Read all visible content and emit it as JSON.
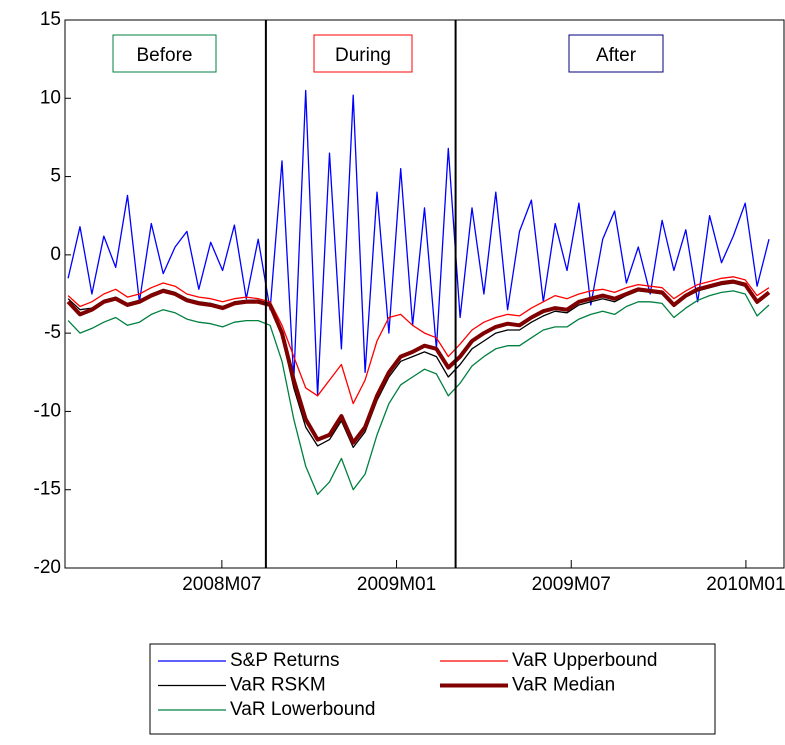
{
  "chart_data": {
    "type": "line",
    "x": [
      2008.06,
      2008.094,
      2008.128,
      2008.162,
      2008.196,
      2008.23,
      2008.264,
      2008.298,
      2008.332,
      2008.366,
      2008.4,
      2008.434,
      2008.468,
      2008.502,
      2008.536,
      2008.57,
      2008.604,
      2008.638,
      2008.672,
      2008.706,
      2008.74,
      2008.774,
      2008.808,
      2008.842,
      2008.876,
      2008.91,
      2008.944,
      2008.978,
      2009.012,
      2009.046,
      2009.08,
      2009.114,
      2009.148,
      2009.182,
      2009.216,
      2009.25,
      2009.284,
      2009.318,
      2009.352,
      2009.386,
      2009.42,
      2009.454,
      2009.488,
      2009.522,
      2009.556,
      2009.59,
      2009.624,
      2009.658,
      2009.692,
      2009.726,
      2009.76,
      2009.794,
      2009.828,
      2009.862,
      2009.896,
      2009.93,
      2009.964,
      2009.998,
      2010.032,
      2010.066
    ],
    "series": [
      {
        "name": "S&P Returns",
        "color": "#0000ff",
        "width": 1.3,
        "values": [
          -1.5,
          1.8,
          -2.5,
          1.2,
          -0.8,
          3.8,
          -3.0,
          2.0,
          -1.2,
          0.5,
          1.5,
          -2.2,
          0.8,
          -1.0,
          1.9,
          -2.8,
          1.0,
          -3.5,
          6.0,
          -8.0,
          10.5,
          -9.0,
          6.5,
          -6.0,
          10.2,
          -7.5,
          4.0,
          -5.0,
          5.5,
          -4.5,
          3.0,
          -6.0,
          6.8,
          -4.0,
          3.0,
          -2.5,
          4.0,
          -3.5,
          1.5,
          3.5,
          -3.0,
          2.0,
          -1.0,
          3.3,
          -3.2,
          1.0,
          2.8,
          -1.8,
          0.5,
          -2.5,
          2.2,
          -1.0,
          1.6,
          -3.0,
          2.5,
          -0.5,
          1.2,
          3.3,
          -2.0,
          1.0
        ]
      },
      {
        "name": "VaR Upperbound",
        "color": "#ff0000",
        "width": 1.3,
        "values": [
          -2.6,
          -3.3,
          -3.0,
          -2.5,
          -2.2,
          -2.7,
          -2.5,
          -2.1,
          -1.8,
          -2.0,
          -2.5,
          -2.7,
          -2.8,
          -3.0,
          -2.8,
          -2.7,
          -2.8,
          -3.0,
          -4.5,
          -6.5,
          -8.5,
          -9.0,
          -8.0,
          -7.0,
          -9.5,
          -8.0,
          -5.5,
          -4.0,
          -3.8,
          -4.5,
          -5.0,
          -5.3,
          -6.5,
          -5.7,
          -4.8,
          -4.3,
          -4.0,
          -3.8,
          -3.9,
          -3.4,
          -3.0,
          -2.6,
          -2.8,
          -2.5,
          -2.3,
          -2.2,
          -2.4,
          -2.1,
          -1.9,
          -2.0,
          -2.1,
          -2.8,
          -2.3,
          -1.9,
          -1.7,
          -1.5,
          -1.4,
          -1.6,
          -2.6,
          -2.1
        ]
      },
      {
        "name": "VaR RSKM",
        "color": "#000000",
        "width": 1.3,
        "values": [
          -2.8,
          -3.5,
          -3.4,
          -2.9,
          -2.7,
          -3.1,
          -2.9,
          -2.5,
          -2.2,
          -2.4,
          -2.8,
          -3.0,
          -3.1,
          -3.3,
          -3.0,
          -2.9,
          -2.9,
          -3.1,
          -5.2,
          -8.5,
          -11.0,
          -12.2,
          -11.8,
          -10.6,
          -12.3,
          -11.3,
          -9.3,
          -7.8,
          -6.8,
          -6.5,
          -6.2,
          -6.5,
          -7.8,
          -7.0,
          -6.0,
          -5.5,
          -5.0,
          -4.8,
          -4.8,
          -4.3,
          -3.9,
          -3.6,
          -3.7,
          -3.2,
          -3.0,
          -2.8,
          -3.0,
          -2.6,
          -2.3,
          -2.4,
          -2.5,
          -3.3,
          -2.7,
          -2.3,
          -2.1,
          -1.9,
          -1.8,
          -2.0,
          -3.1,
          -2.5
        ]
      },
      {
        "name": "VaR Median",
        "color": "#800000",
        "width": 4,
        "values": [
          -3.0,
          -3.8,
          -3.5,
          -3.0,
          -2.8,
          -3.2,
          -3.0,
          -2.6,
          -2.3,
          -2.5,
          -2.9,
          -3.1,
          -3.2,
          -3.4,
          -3.1,
          -3.0,
          -3.0,
          -3.2,
          -5.0,
          -8.0,
          -10.5,
          -11.8,
          -11.5,
          -10.3,
          -12.0,
          -11.0,
          -9.0,
          -7.5,
          -6.5,
          -6.2,
          -5.8,
          -6.0,
          -7.2,
          -6.5,
          -5.5,
          -5.0,
          -4.6,
          -4.4,
          -4.5,
          -4.0,
          -3.6,
          -3.4,
          -3.5,
          -3.0,
          -2.8,
          -2.6,
          -2.8,
          -2.5,
          -2.2,
          -2.3,
          -2.4,
          -3.2,
          -2.6,
          -2.2,
          -2.0,
          -1.8,
          -1.7,
          -1.9,
          -3.0,
          -2.4
        ]
      },
      {
        "name": "VaR Lowerbound",
        "color": "#008040",
        "width": 1.3,
        "values": [
          -4.2,
          -5.0,
          -4.7,
          -4.3,
          -4.0,
          -4.5,
          -4.3,
          -3.8,
          -3.5,
          -3.7,
          -4.1,
          -4.3,
          -4.4,
          -4.6,
          -4.3,
          -4.2,
          -4.2,
          -4.5,
          -6.8,
          -10.5,
          -13.5,
          -15.3,
          -14.5,
          -13.0,
          -15.0,
          -14.0,
          -11.5,
          -9.5,
          -8.3,
          -7.8,
          -7.3,
          -7.6,
          -9.0,
          -8.2,
          -7.1,
          -6.5,
          -6.0,
          -5.8,
          -5.8,
          -5.3,
          -4.8,
          -4.6,
          -4.6,
          -4.1,
          -3.8,
          -3.6,
          -3.8,
          -3.3,
          -3.0,
          -3.0,
          -3.1,
          -4.0,
          -3.4,
          -2.9,
          -2.6,
          -2.4,
          -2.3,
          -2.5,
          -3.9,
          -3.2
        ]
      }
    ],
    "xlim": [
      2008.051,
      2010.109
    ],
    "xticks": [
      {
        "value": 2008.5,
        "label": "2008M07"
      },
      {
        "value": 2009.0,
        "label": "2009M01"
      },
      {
        "value": 2009.5,
        "label": "2009M07"
      },
      {
        "value": 2010.0,
        "label": "2010M01"
      }
    ],
    "ylim": [
      -20,
      15
    ],
    "yticks": [
      15,
      10,
      5,
      0,
      -5,
      -10,
      -15,
      -20
    ],
    "vlines": [
      2008.626,
      2009.169
    ],
    "annotations": [
      {
        "text": "Before",
        "color": "#008040"
      },
      {
        "text": "During",
        "color": "#ff0000"
      },
      {
        "text": "After",
        "color": "#000080"
      }
    ],
    "legend": "bottom"
  }
}
